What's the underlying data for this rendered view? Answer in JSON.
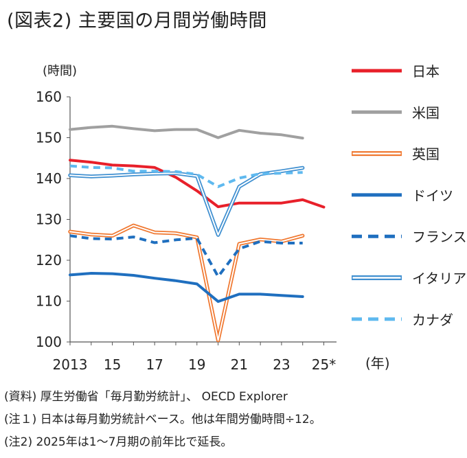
{
  "title": "(図表2) 主要国の月間労働時間",
  "notes": [
    "(資料) 厚生労働省「毎月勤労統計」、 OECD Explorer",
    "(注１) 日本は毎月勤労統計ベース。他は年間労働時間÷12。",
    "(注2) 2025年は1～7月期の前年比で延長。"
  ],
  "chart_data": {
    "type": "line",
    "title": "(図表2) 主要国の月間労働時間",
    "ylabel": "(時間)",
    "xlabel": "(年)",
    "ylim": [
      100,
      160
    ],
    "xlim": [
      2013,
      2025.6
    ],
    "yticks": [
      100,
      110,
      120,
      130,
      140,
      150,
      160
    ],
    "xticks": [
      {
        "value": 2013,
        "label": "2013"
      },
      {
        "value": 2015,
        "label": "15"
      },
      {
        "value": 2017,
        "label": "17"
      },
      {
        "value": 2019,
        "label": "19"
      },
      {
        "value": 2021,
        "label": "21"
      },
      {
        "value": 2023,
        "label": "23"
      },
      {
        "value": 2025,
        "label": "25*"
      }
    ],
    "grid": false,
    "legend_position": "right",
    "series": [
      {
        "name": "日本",
        "color": "#e8202a",
        "style": "solid",
        "x": [
          2013,
          2014,
          2015,
          2016,
          2017,
          2018,
          2019,
          2020,
          2021,
          2022,
          2023,
          2024,
          2025
        ],
        "y": [
          144.5,
          144.0,
          143.3,
          143.1,
          142.7,
          140.3,
          137.0,
          133.1,
          134.0,
          134.0,
          134.0,
          134.8,
          133.0
        ]
      },
      {
        "name": "米国",
        "color": "#a0a0a0",
        "style": "solid",
        "x": [
          2013,
          2014,
          2015,
          2016,
          2017,
          2018,
          2019,
          2020,
          2021,
          2022,
          2023,
          2024
        ],
        "y": [
          152.0,
          152.5,
          152.8,
          152.2,
          151.7,
          152.0,
          152.0,
          150.0,
          151.8,
          151.1,
          150.7,
          149.9
        ]
      },
      {
        "name": "英国",
        "color": "#f07830",
        "style": "double",
        "x": [
          2013,
          2014,
          2015,
          2016,
          2017,
          2018,
          2019,
          2020,
          2021,
          2022,
          2023,
          2024
        ],
        "y": [
          127.0,
          126.3,
          126.0,
          128.5,
          126.8,
          126.6,
          125.6,
          100.4,
          124.0,
          125.1,
          124.6,
          126.0
        ]
      },
      {
        "name": "ドイツ",
        "color": "#1f6fbf",
        "style": "solid",
        "x": [
          2013,
          2014,
          2015,
          2016,
          2017,
          2018,
          2019,
          2020,
          2021,
          2022,
          2023,
          2024
        ],
        "y": [
          116.4,
          116.8,
          116.7,
          116.3,
          115.6,
          115.0,
          114.2,
          109.9,
          111.7,
          111.7,
          111.4,
          111.1
        ]
      },
      {
        "name": "フランス",
        "color": "#1f6fbf",
        "style": "dashed",
        "x": [
          2013,
          2014,
          2015,
          2016,
          2017,
          2018,
          2019,
          2020,
          2021,
          2022,
          2023,
          2024
        ],
        "y": [
          126.0,
          125.3,
          125.2,
          125.7,
          124.3,
          125.0,
          125.4,
          116.0,
          122.8,
          124.6,
          124.2,
          124.2
        ]
      },
      {
        "name": "イタリア",
        "color": "#3f8fd0",
        "style": "double",
        "x": [
          2013,
          2014,
          2015,
          2016,
          2017,
          2018,
          2019,
          2020,
          2021,
          2022,
          2023,
          2024
        ],
        "y": [
          140.8,
          140.5,
          140.7,
          141.0,
          141.2,
          141.3,
          140.6,
          126.2,
          138.0,
          141.1,
          141.8,
          142.6
        ]
      },
      {
        "name": "カナダ",
        "color": "#5fb9ef",
        "style": "dashed",
        "x": [
          2013,
          2014,
          2015,
          2016,
          2017,
          2018,
          2019,
          2020,
          2021,
          2022,
          2023,
          2024
        ],
        "y": [
          143.1,
          142.7,
          142.6,
          141.8,
          141.8,
          141.7,
          141.0,
          138.0,
          140.1,
          141.2,
          141.3,
          141.5
        ]
      }
    ]
  }
}
